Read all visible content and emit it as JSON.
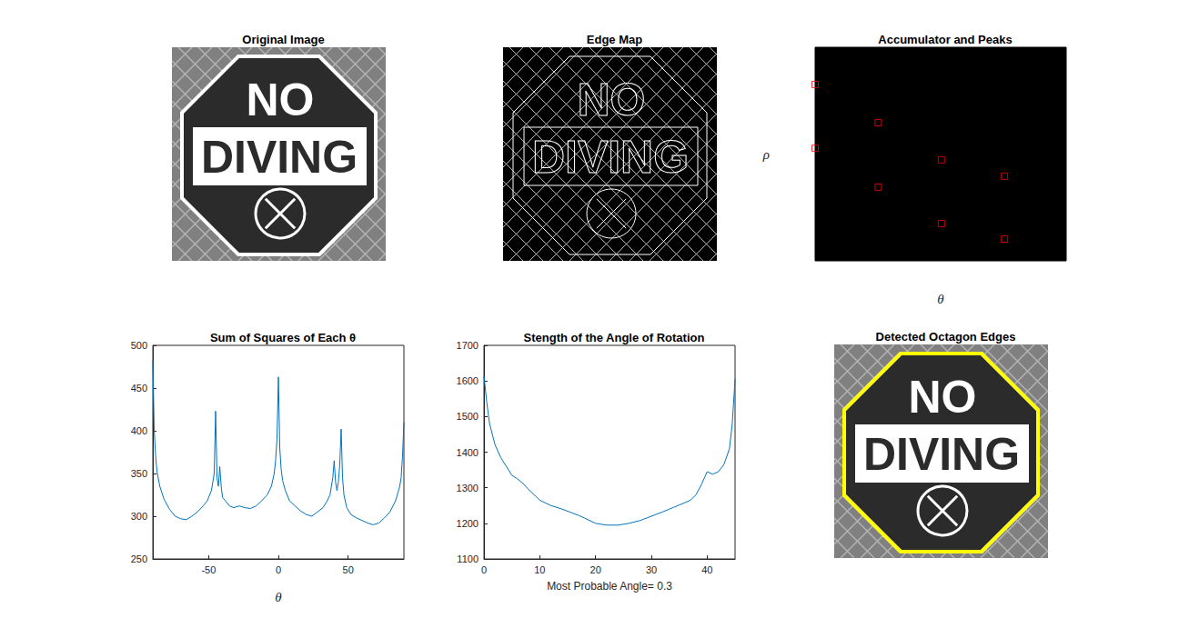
{
  "chart_data": [
    {
      "type": "image",
      "title": "Original Image",
      "annotations": [
        "NO",
        "DIVING"
      ]
    },
    {
      "type": "edges",
      "title": "Edge Map",
      "annotations": [
        "NO",
        "DIVING"
      ]
    },
    {
      "type": "scatter",
      "title": "Accumulator and Peaks",
      "x_label": "θ",
      "y_label": "ρ",
      "xlim": [
        -90,
        89
      ],
      "ylim": [
        -333,
        333
      ],
      "tick_labels": false,
      "marker": "square",
      "color": "#ff0000",
      "x": [
        -90,
        -90,
        -45,
        -45,
        0,
        0,
        45,
        45
      ],
      "values": [
        -217,
        -18,
        -98,
        103,
        18,
        217,
        69,
        265
      ]
    },
    {
      "type": "line",
      "title": "Sum of Squares of Each θ",
      "x_label": "θ",
      "color": "#0072bd",
      "xlim": [
        -90,
        90
      ],
      "xticks": [
        -50,
        0,
        50
      ],
      "ylim": [
        250,
        500
      ],
      "yticks": [
        250,
        300,
        350,
        400,
        450,
        500
      ],
      "x": [
        -90,
        -89,
        -88,
        -87,
        -85,
        -82,
        -78,
        -74,
        -70,
        -66,
        -62,
        -58,
        -54,
        -51,
        -48,
        -46,
        -45,
        -44,
        -43,
        -42,
        -41,
        -40,
        -38,
        -35,
        -32,
        -28,
        -24,
        -20,
        -16,
        -12,
        -8,
        -5,
        -3,
        -2,
        -1,
        0,
        1,
        2,
        3,
        5,
        8,
        12,
        16,
        20,
        24,
        28,
        32,
        35,
        37,
        38,
        39,
        40,
        41,
        42,
        43,
        44,
        45,
        46,
        47,
        49,
        52,
        56,
        60,
        64,
        68,
        72,
        76,
        80,
        84,
        87,
        88,
        89,
        90
      ],
      "values": [
        482,
        400,
        370,
        352,
        335,
        320,
        308,
        300,
        297,
        296,
        300,
        305,
        312,
        318,
        330,
        350,
        423,
        345,
        335,
        358,
        335,
        322,
        318,
        312,
        310,
        312,
        310,
        309,
        312,
        318,
        325,
        335,
        350,
        365,
        390,
        463,
        380,
        355,
        342,
        330,
        318,
        312,
        306,
        302,
        300,
        305,
        310,
        318,
        325,
        335,
        345,
        365,
        340,
        330,
        340,
        360,
        402,
        345,
        325,
        310,
        302,
        298,
        295,
        292,
        290,
        292,
        298,
        305,
        318,
        335,
        345,
        370,
        410
      ]
    },
    {
      "type": "line",
      "title": "Stength of the Angle of Rotation",
      "x_label": "Most Probable Angle= 0.3",
      "color": "#0072bd",
      "xlim": [
        0,
        45
      ],
      "xticks": [
        0,
        10,
        20,
        30,
        40
      ],
      "ylim": [
        1100,
        1700
      ],
      "yticks": [
        1100,
        1200,
        1300,
        1400,
        1500,
        1600,
        1700
      ],
      "x": [
        0,
        0.5,
        1,
        2,
        3,
        4,
        5,
        6,
        7,
        8,
        10,
        12,
        14,
        16,
        17,
        18,
        20,
        22,
        24,
        26,
        28,
        30,
        32,
        34,
        36,
        37,
        38,
        39,
        40,
        41,
        42,
        43,
        44,
        44.5,
        45
      ],
      "values": [
        1615,
        1540,
        1480,
        1420,
        1385,
        1360,
        1335,
        1325,
        1312,
        1295,
        1265,
        1250,
        1240,
        1228,
        1222,
        1215,
        1200,
        1195,
        1195,
        1200,
        1208,
        1220,
        1232,
        1245,
        1258,
        1265,
        1280,
        1310,
        1345,
        1338,
        1345,
        1365,
        1410,
        1480,
        1605
      ]
    },
    {
      "type": "overlay",
      "title": "Detected Octagon Edges",
      "annotations": [
        "NO",
        "DIVING"
      ],
      "color": "#ffff00"
    }
  ]
}
